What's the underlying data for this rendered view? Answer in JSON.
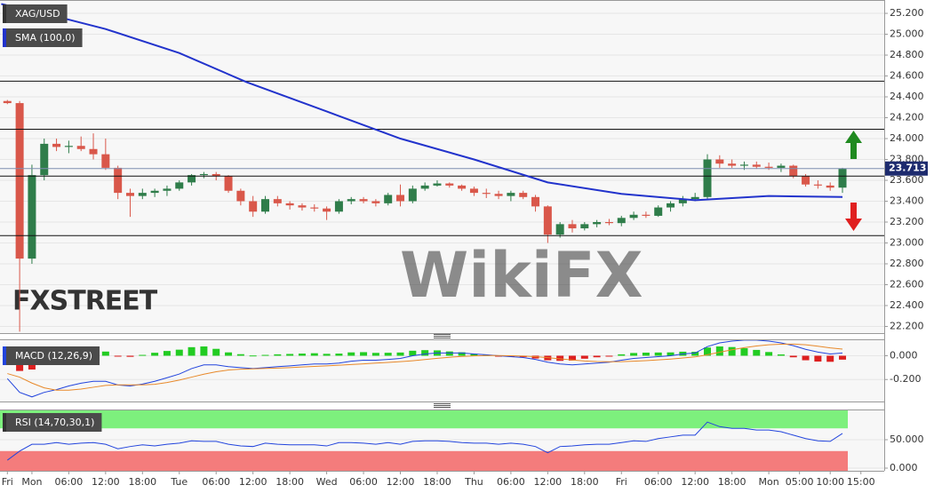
{
  "chart_data": [
    {
      "type": "candlestick",
      "title": "XAG/USD",
      "x": [
        0,
        2,
        4,
        6,
        8,
        10,
        12,
        14,
        16,
        18,
        20,
        22,
        24,
        26,
        28,
        30,
        32,
        34,
        36,
        38,
        40,
        42,
        44,
        46,
        48,
        50,
        52,
        54,
        56,
        58,
        60,
        62,
        64,
        66,
        68,
        70,
        72,
        74,
        76,
        78,
        80,
        82,
        84,
        86,
        88,
        90,
        92,
        94,
        96,
        98,
        100,
        102,
        104,
        106,
        108,
        110,
        112,
        114,
        116,
        118,
        120,
        122,
        124,
        126,
        128,
        130,
        132,
        134,
        136
      ],
      "open": [
        24.36,
        24.34,
        22.85,
        23.65,
        23.95,
        23.92,
        23.93,
        23.9,
        23.85,
        23.72,
        23.48,
        23.45,
        23.48,
        23.5,
        23.52,
        23.58,
        23.65,
        23.66,
        23.64,
        23.5,
        23.4,
        23.3,
        23.42,
        23.38,
        23.36,
        23.34,
        23.33,
        23.3,
        23.4,
        23.42,
        23.4,
        23.38,
        23.46,
        23.4,
        23.52,
        23.55,
        23.57,
        23.55,
        23.52,
        23.48,
        23.47,
        23.45,
        23.48,
        23.44,
        23.35,
        23.08,
        23.18,
        23.14,
        23.18,
        23.2,
        23.19,
        23.24,
        23.27,
        23.26,
        23.34,
        23.38,
        23.42,
        23.44,
        23.8,
        23.76,
        23.74,
        23.75,
        23.73,
        23.72,
        23.74,
        23.64,
        23.56,
        23.55,
        23.53
      ],
      "high": [
        24.37,
        24.36,
        23.75,
        24.0,
        24.0,
        23.98,
        24.02,
        24.05,
        24.0,
        23.74,
        23.52,
        23.52,
        23.52,
        23.55,
        23.6,
        23.66,
        23.68,
        23.68,
        23.65,
        23.52,
        23.45,
        23.45,
        23.45,
        23.4,
        23.38,
        23.37,
        23.35,
        23.42,
        23.44,
        23.44,
        23.42,
        23.48,
        23.56,
        23.55,
        23.58,
        23.6,
        23.58,
        23.56,
        23.54,
        23.52,
        23.5,
        23.5,
        23.5,
        23.46,
        23.36,
        23.2,
        23.22,
        23.2,
        23.22,
        23.23,
        23.26,
        23.3,
        23.3,
        23.36,
        23.4,
        23.45,
        23.48,
        23.85,
        23.84,
        23.8,
        23.78,
        23.78,
        23.77,
        23.76,
        23.75,
        23.66,
        23.6,
        23.58,
        23.72
      ],
      "low": [
        24.33,
        22.15,
        22.8,
        23.6,
        23.88,
        23.86,
        23.88,
        23.8,
        23.7,
        23.42,
        23.25,
        23.42,
        23.44,
        23.45,
        23.5,
        23.55,
        23.62,
        23.6,
        23.48,
        23.36,
        23.25,
        23.28,
        23.35,
        23.32,
        23.31,
        23.3,
        23.22,
        23.28,
        23.37,
        23.38,
        23.35,
        23.36,
        23.35,
        23.38,
        23.5,
        23.54,
        23.53,
        23.5,
        23.45,
        23.43,
        23.42,
        23.4,
        23.42,
        23.3,
        23.0,
        23.05,
        23.1,
        23.12,
        23.15,
        23.17,
        23.16,
        23.22,
        23.24,
        23.25,
        23.3,
        23.35,
        23.4,
        23.42,
        23.72,
        23.72,
        23.7,
        23.71,
        23.7,
        23.68,
        23.62,
        23.54,
        23.52,
        23.5,
        23.48
      ],
      "close": [
        24.34,
        22.85,
        23.65,
        23.95,
        23.92,
        23.93,
        23.9,
        23.85,
        23.72,
        23.48,
        23.45,
        23.48,
        23.5,
        23.52,
        23.58,
        23.65,
        23.66,
        23.64,
        23.5,
        23.4,
        23.3,
        23.42,
        23.38,
        23.36,
        23.34,
        23.33,
        23.3,
        23.4,
        23.42,
        23.4,
        23.38,
        23.46,
        23.4,
        23.52,
        23.55,
        23.57,
        23.55,
        23.52,
        23.48,
        23.47,
        23.45,
        23.48,
        23.44,
        23.35,
        23.08,
        23.18,
        23.14,
        23.18,
        23.2,
        23.19,
        23.24,
        23.27,
        23.26,
        23.34,
        23.38,
        23.42,
        23.44,
        23.8,
        23.76,
        23.74,
        23.75,
        23.73,
        23.72,
        23.74,
        23.64,
        23.56,
        23.55,
        23.53,
        23.71
      ],
      "up_color": "#2f7d4a",
      "down_color": "#d9574a",
      "sma": {
        "name": "SMA (100,0)",
        "color": "#2233cc",
        "x": [
          -1,
          8,
          16,
          28,
          39,
          52,
          64,
          76,
          88,
          100,
          112,
          124,
          136
        ],
        "values": [
          25.29,
          25.17,
          25.05,
          24.82,
          24.54,
          24.26,
          24.0,
          23.8,
          23.58,
          23.47,
          23.41,
          23.45,
          23.44
        ]
      },
      "levels": [
        24.55,
        24.09,
        23.64,
        23.07
      ],
      "level_color": "#111111",
      "last_price": 23.713,
      "last_price_color": "#1d2b6e",
      "xlim": [
        -1.2,
        142.8
      ],
      "ylim": [
        22.136,
        25.328
      ],
      "yticks": [
        {
          "value": 25.2,
          "label": "25.200"
        },
        {
          "value": 25.0,
          "label": "25.000"
        },
        {
          "value": 24.8,
          "label": "24.800"
        },
        {
          "value": 24.6,
          "label": "24.600"
        },
        {
          "value": 24.4,
          "label": "24.400"
        },
        {
          "value": 24.2,
          "label": "24.200"
        },
        {
          "value": 24.0,
          "label": "24.000"
        },
        {
          "value": 23.8,
          "label": "23.800"
        },
        {
          "value": 23.6,
          "label": "23.600"
        },
        {
          "value": 23.4,
          "label": "23.400"
        },
        {
          "value": 23.2,
          "label": "23.200"
        },
        {
          "value": 23.0,
          "label": "23.000"
        },
        {
          "value": 22.8,
          "label": "22.800"
        },
        {
          "value": 22.6,
          "label": "22.600"
        },
        {
          "value": 22.4,
          "label": "22.400"
        },
        {
          "value": 22.2,
          "label": "22.200"
        }
      ],
      "grid": true,
      "logo": "FXSTREET",
      "watermark": "WikiFX"
    },
    {
      "type": "macd",
      "title": "MACD (12,26,9)",
      "x": [
        0,
        2,
        4,
        6,
        8,
        10,
        12,
        14,
        16,
        18,
        20,
        22,
        24,
        26,
        28,
        30,
        32,
        34,
        36,
        38,
        40,
        42,
        44,
        46,
        48,
        50,
        52,
        54,
        56,
        58,
        60,
        62,
        64,
        66,
        68,
        70,
        72,
        74,
        76,
        78,
        80,
        82,
        84,
        86,
        88,
        90,
        92,
        94,
        96,
        98,
        100,
        102,
        104,
        106,
        108,
        110,
        112,
        114,
        116,
        118,
        120,
        122,
        124,
        126,
        128,
        130,
        132,
        134,
        136
      ],
      "macd": {
        "color": "#2244dd",
        "values": [
          -0.192,
          -0.308,
          -0.346,
          -0.308,
          -0.285,
          -0.254,
          -0.231,
          -0.215,
          -0.215,
          -0.246,
          -0.254,
          -0.238,
          -0.215,
          -0.185,
          -0.154,
          -0.108,
          -0.077,
          -0.077,
          -0.092,
          -0.1,
          -0.108,
          -0.1,
          -0.092,
          -0.085,
          -0.077,
          -0.069,
          -0.069,
          -0.062,
          -0.046,
          -0.038,
          -0.038,
          -0.031,
          -0.023,
          0,
          0.015,
          0.023,
          0.023,
          0.023,
          0.015,
          0.008,
          0,
          -0.008,
          -0.015,
          -0.031,
          -0.054,
          -0.069,
          -0.077,
          -0.069,
          -0.062,
          -0.054,
          -0.038,
          -0.023,
          -0.015,
          -0.008,
          0,
          0.015,
          0.023,
          0.077,
          0.108,
          0.123,
          0.131,
          0.131,
          0.123,
          0.108,
          0.085,
          0.054,
          0.031,
          0.015,
          0.023
        ]
      },
      "signal": {
        "color": "#e8892a",
        "values": [
          -0.15,
          -0.18,
          -0.23,
          -0.27,
          -0.29,
          -0.29,
          -0.28,
          -0.265,
          -0.25,
          -0.245,
          -0.245,
          -0.245,
          -0.24,
          -0.225,
          -0.205,
          -0.18,
          -0.155,
          -0.135,
          -0.12,
          -0.113,
          -0.11,
          -0.107,
          -0.104,
          -0.1,
          -0.095,
          -0.09,
          -0.085,
          -0.08,
          -0.074,
          -0.068,
          -0.062,
          -0.056,
          -0.05,
          -0.042,
          -0.032,
          -0.022,
          -0.013,
          -0.006,
          -0.001,
          0.002,
          0.002,
          0,
          -0.003,
          -0.008,
          -0.016,
          -0.026,
          -0.036,
          -0.044,
          -0.049,
          -0.051,
          -0.05,
          -0.046,
          -0.041,
          -0.035,
          -0.028,
          -0.019,
          -0.01,
          0.008,
          0.03,
          0.05,
          0.068,
          0.082,
          0.092,
          0.097,
          0.098,
          0.092,
          0.08,
          0.066,
          0.056
        ]
      },
      "histogram": {
        "up_color": "#22cc22",
        "down_color": "#dd1f1f",
        "values": [
          -0.042,
          -0.128,
          -0.116,
          -0.038,
          0.005,
          0.036,
          0.049,
          0.05,
          0.035,
          -0.001,
          -0.009,
          0.007,
          0.025,
          0.04,
          0.051,
          0.072,
          0.078,
          0.058,
          0.028,
          0.013,
          0.002,
          0.007,
          0.012,
          0.015,
          0.018,
          0.021,
          0.016,
          0.018,
          0.028,
          0.03,
          0.024,
          0.025,
          0.027,
          0.042,
          0.047,
          0.045,
          0.036,
          0.029,
          0.016,
          0.006,
          -0.002,
          -0.008,
          -0.012,
          -0.023,
          -0.038,
          -0.043,
          -0.041,
          -0.025,
          -0.013,
          -0.003,
          0.012,
          0.023,
          0.026,
          0.027,
          0.028,
          0.034,
          0.033,
          0.069,
          0.078,
          0.073,
          0.063,
          0.049,
          0.031,
          0.011,
          -0.013,
          -0.038,
          -0.049,
          -0.051,
          -0.033
        ]
      },
      "xlim": [
        -1.2,
        142.8
      ],
      "ylim": [
        -0.385,
        0.138
      ],
      "yticks": [
        {
          "value": 0,
          "label": "0.000"
        },
        {
          "value": -0.2,
          "label": "-0.200"
        }
      ]
    },
    {
      "type": "line",
      "title": "RSI (14,70,30,1)",
      "x": [
        0,
        2,
        4,
        6,
        8,
        10,
        12,
        14,
        16,
        18,
        20,
        22,
        24,
        26,
        28,
        30,
        32,
        34,
        36,
        38,
        40,
        42,
        44,
        46,
        48,
        50,
        52,
        54,
        56,
        58,
        60,
        62,
        64,
        66,
        68,
        70,
        72,
        74,
        76,
        78,
        80,
        82,
        84,
        86,
        88,
        90,
        92,
        94,
        96,
        98,
        100,
        102,
        104,
        106,
        108,
        110,
        112,
        114,
        116,
        118,
        120,
        122,
        124,
        126,
        128,
        130,
        132,
        134,
        136
      ],
      "values": [
        14,
        30,
        42,
        42,
        45,
        42,
        44,
        45,
        42,
        34,
        38,
        41,
        39,
        42,
        44,
        48,
        47,
        47,
        42,
        39,
        38,
        44,
        42,
        41,
        41,
        41,
        39,
        45,
        45,
        44,
        42,
        45,
        42,
        47,
        48,
        48,
        47,
        45,
        44,
        44,
        42,
        44,
        42,
        38,
        27,
        38,
        39,
        41,
        42,
        42,
        45,
        48,
        47,
        52,
        55,
        58,
        58,
        81,
        73,
        70,
        70,
        67,
        67,
        64,
        58,
        52,
        48,
        47,
        61
      ],
      "color": "#2244dd",
      "overbought": 70,
      "oversold": 30,
      "overbought_color": "#7df07d",
      "oversold_color": "#f47c7c",
      "xlim": [
        -1.2,
        142.8
      ],
      "ylim": [
        -4.7,
        101.6
      ],
      "yticks": [
        {
          "value": 50,
          "label": "50.000"
        },
        {
          "value": 0,
          "label": "0.000"
        }
      ],
      "xticks": [
        {
          "value": 0,
          "label": "Fri"
        },
        {
          "value": 4,
          "label": "Mon"
        },
        {
          "value": 10,
          "label": "06:00"
        },
        {
          "value": 16,
          "label": "12:00"
        },
        {
          "value": 22,
          "label": "18:00"
        },
        {
          "value": 28,
          "label": "Tue"
        },
        {
          "value": 34,
          "label": "06:00"
        },
        {
          "value": 40,
          "label": "12:00"
        },
        {
          "value": 46,
          "label": "18:00"
        },
        {
          "value": 52,
          "label": "Wed"
        },
        {
          "value": 58,
          "label": "06:00"
        },
        {
          "value": 64,
          "label": "12:00"
        },
        {
          "value": 70,
          "label": "18:00"
        },
        {
          "value": 76,
          "label": "Thu"
        },
        {
          "value": 82,
          "label": "06:00"
        },
        {
          "value": 88,
          "label": "12:00"
        },
        {
          "value": 94,
          "label": "18:00"
        },
        {
          "value": 100,
          "label": "Fri"
        },
        {
          "value": 106,
          "label": "06:00"
        },
        {
          "value": 112,
          "label": "12:00"
        },
        {
          "value": 118,
          "label": "18:00"
        },
        {
          "value": 124,
          "label": "Mon"
        },
        {
          "value": 129,
          "label": "05:00"
        },
        {
          "value": 134,
          "label": "10:00"
        },
        {
          "value": 139,
          "label": "15:00"
        }
      ]
    }
  ]
}
